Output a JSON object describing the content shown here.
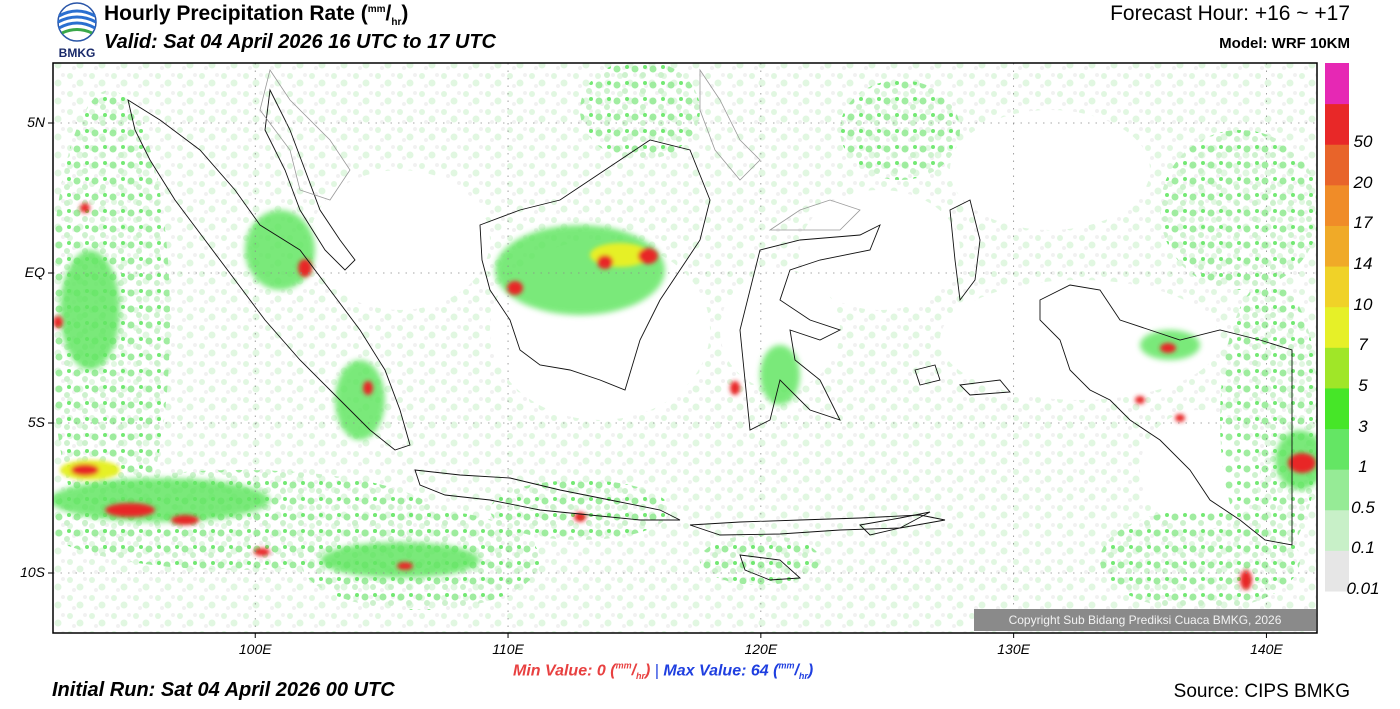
{
  "header": {
    "title_main": "Hourly Precipitation Rate (",
    "title_unit_top": "mm",
    "title_unit_sep": "/",
    "title_unit_bottom": "hr",
    "title_close": ")",
    "valid": "Valid: Sat 04 April 2026 16 UTC to 17 UTC",
    "forecast_hour": "Forecast Hour: +16 ~ +17",
    "model": "Model: WRF 10KM"
  },
  "logo": {
    "text": "BMKG",
    "icon": "bmkg-logo-icon"
  },
  "map": {
    "lon_range": [
      92,
      142
    ],
    "lat_range": [
      -12,
      7
    ],
    "lat_ticks": [
      {
        "value": 5,
        "label": "5N"
      },
      {
        "value": 0,
        "label": "EQ"
      },
      {
        "value": -5,
        "label": "5S"
      },
      {
        "value": -10,
        "label": "10S"
      }
    ],
    "lon_ticks": [
      {
        "value": 100,
        "label": "100E"
      },
      {
        "value": 110,
        "label": "110E"
      },
      {
        "value": 120,
        "label": "120E"
      },
      {
        "value": 130,
        "label": "130E"
      },
      {
        "value": 140,
        "label": "140E"
      }
    ],
    "grid": "dotted",
    "copyright": "Copyright Sub Bidang Prediksi Cuaca BMKG, 2026"
  },
  "colorbar": {
    "levels": [
      {
        "label": "0.01",
        "color": "#e6e6e6"
      },
      {
        "label": "0.1",
        "color": "#c8f0c8"
      },
      {
        "label": "0.5",
        "color": "#96eb96"
      },
      {
        "label": "1",
        "color": "#64e664"
      },
      {
        "label": "3",
        "color": "#46e628"
      },
      {
        "label": "5",
        "color": "#a0e628"
      },
      {
        "label": "7",
        "color": "#e6f028"
      },
      {
        "label": "10",
        "color": "#f0d228"
      },
      {
        "label": "14",
        "color": "#f0aa28"
      },
      {
        "label": "17",
        "color": "#f08c28"
      },
      {
        "label": "20",
        "color": "#e8642a"
      },
      {
        "label": "50",
        "color": "#e82828"
      },
      {
        "label": "",
        "color": "#e628b4"
      }
    ]
  },
  "footer": {
    "min_label": "Min Value:",
    "min_value": "0",
    "max_label": "Max Value:",
    "max_value": "64",
    "unit_top": "mm",
    "unit_sep": "/",
    "unit_bottom": "hr",
    "divider": "|",
    "initial_run": "Initial Run: Sat 04 April 2026 00 UTC",
    "source": "Source: CIPS BMKG"
  }
}
